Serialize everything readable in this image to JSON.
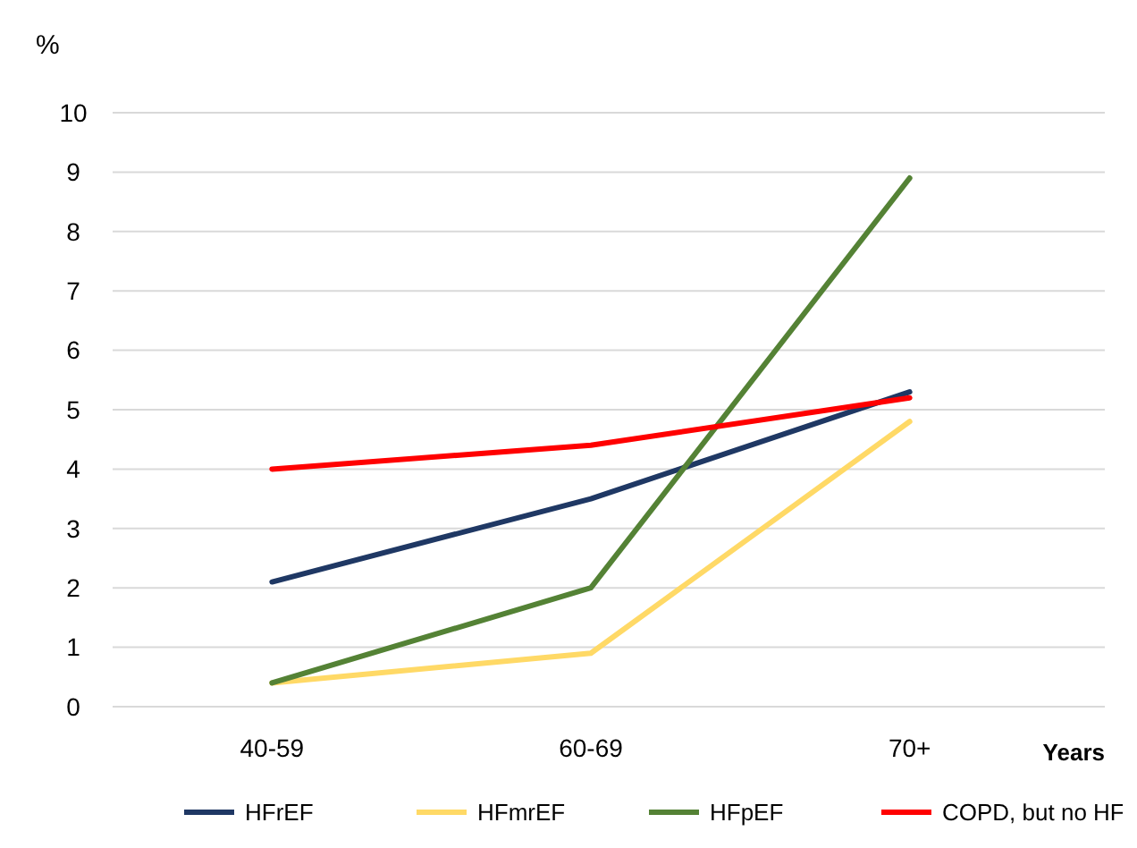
{
  "chart_data": {
    "type": "line",
    "ylabel": "%",
    "xlabel": "Years",
    "categories": [
      "40-59",
      "60-69",
      "70+"
    ],
    "series": [
      {
        "name": "HFrEF",
        "color": "#1f3864",
        "values": [
          2.1,
          3.5,
          5.3
        ]
      },
      {
        "name": "HFmrEF",
        "color": "#ffd966",
        "values": [
          0.4,
          0.9,
          4.8
        ]
      },
      {
        "name": "HFpEF",
        "color": "#548235",
        "values": [
          0.4,
          2.0,
          8.9
        ]
      },
      {
        "name": "COPD, but no HF",
        "color": "#ff0000",
        "values": [
          4.0,
          4.4,
          5.2
        ]
      }
    ],
    "ylim": [
      0,
      10
    ],
    "yticks": [
      0,
      1,
      2,
      3,
      4,
      5,
      6,
      7,
      8,
      9,
      10
    ],
    "grid": "y",
    "legend": "bottom",
    "marker": "none",
    "line_style": "solid"
  }
}
